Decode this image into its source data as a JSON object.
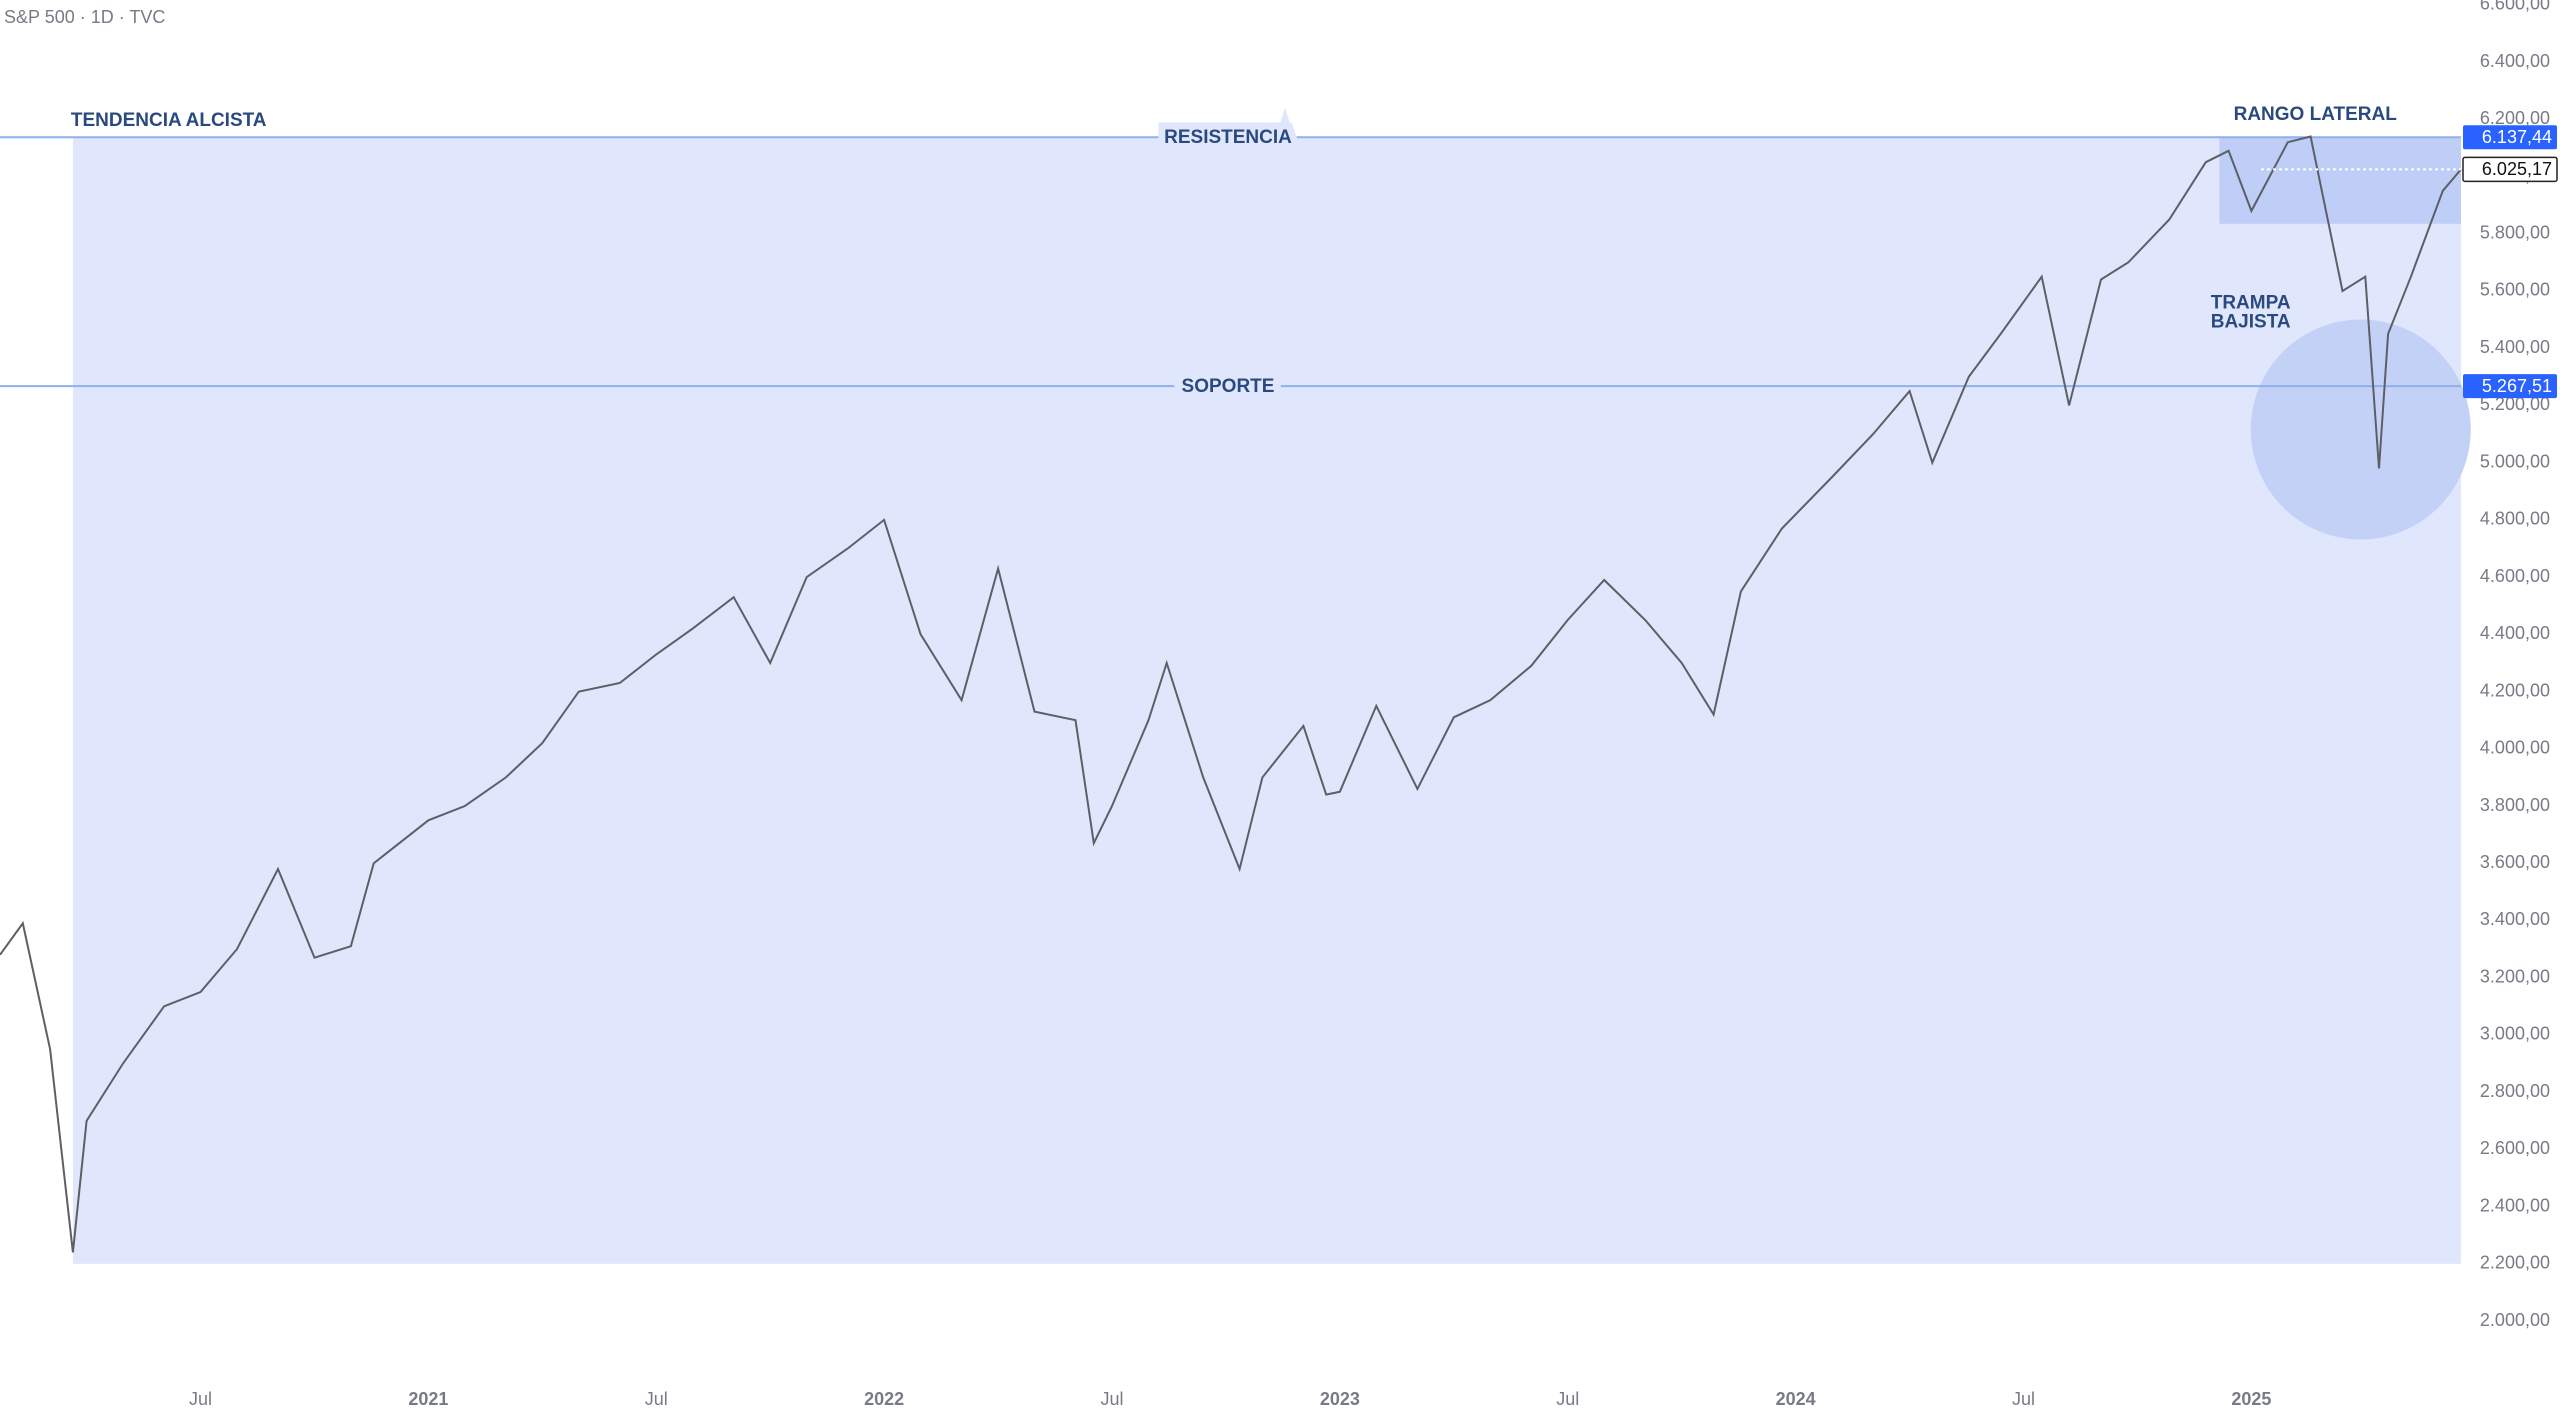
{
  "header": "S&P 500 · 1D · TVC",
  "chart_data": {
    "type": "line",
    "line_color": "#5d5f66",
    "grid": false,
    "x": [
      2020.06,
      2020.11,
      2020.17,
      2020.22,
      2020.25,
      2020.33,
      2020.42,
      2020.5,
      2020.58,
      2020.67,
      2020.75,
      2020.83,
      2020.88,
      2021.0,
      2021.08,
      2021.17,
      2021.25,
      2021.33,
      2021.42,
      2021.5,
      2021.58,
      2021.67,
      2021.75,
      2021.83,
      2021.92,
      2022.0,
      2022.08,
      2022.17,
      2022.25,
      2022.33,
      2022.42,
      2022.46,
      2022.5,
      2022.58,
      2022.62,
      2022.7,
      2022.78,
      2022.83,
      2022.92,
      2022.97,
      2023.0,
      2023.08,
      2023.17,
      2023.25,
      2023.33,
      2023.42,
      2023.5,
      2023.58,
      2023.67,
      2023.75,
      2023.82,
      2023.88,
      2023.97,
      2024.08,
      2024.17,
      2024.25,
      2024.3,
      2024.38,
      2024.45,
      2024.54,
      2024.6,
      2024.67,
      2024.73,
      2024.82,
      2024.9,
      2024.95,
      2025.0,
      2025.08,
      2025.13,
      2025.2,
      2025.25,
      2025.28,
      2025.3,
      2025.35,
      2025.42,
      2025.46
    ],
    "values": [
      3280,
      3390,
      2950,
      2240,
      2700,
      2900,
      3100,
      3150,
      3300,
      3580,
      3270,
      3310,
      3600,
      3750,
      3800,
      3900,
      4020,
      4200,
      4230,
      4330,
      4420,
      4530,
      4300,
      4600,
      4700,
      4800,
      4400,
      4170,
      4630,
      4130,
      4100,
      3670,
      3800,
      4100,
      4300,
      3900,
      3580,
      3900,
      4080,
      3840,
      3850,
      4150,
      3860,
      4110,
      4170,
      4290,
      4450,
      4590,
      4450,
      4300,
      4120,
      4550,
      4770,
      4950,
      5100,
      5250,
      5000,
      5300,
      5450,
      5650,
      5200,
      5640,
      5700,
      5850,
      6050,
      6090,
      5880,
      6120,
      6140,
      5600,
      5650,
      4980,
      5450,
      5650,
      5950,
      6025
    ],
    "xlim": [
      2020.06,
      2025.46
    ],
    "xticks": [
      {
        "value": 2020.5,
        "label": "Jul"
      },
      {
        "value": 2021,
        "label": "2021"
      },
      {
        "value": 2021.5,
        "label": "Jul"
      },
      {
        "value": 2022,
        "label": "2022"
      },
      {
        "value": 2022.5,
        "label": "Jul"
      },
      {
        "value": 2023,
        "label": "2023"
      },
      {
        "value": 2023.5,
        "label": "Jul"
      },
      {
        "value": 2024,
        "label": "2024"
      },
      {
        "value": 2024.5,
        "label": "Jul"
      },
      {
        "value": 2025,
        "label": "2025"
      }
    ],
    "ylim": [
      1794,
      6617
    ],
    "yticks": [
      {
        "value": 2000,
        "label": "2.000,00"
      },
      {
        "value": 2200,
        "label": "2.200,00"
      },
      {
        "value": 2400,
        "label": "2.400,00"
      },
      {
        "value": 2600,
        "label": "2.600,00"
      },
      {
        "value": 2800,
        "label": "2.800,00"
      },
      {
        "value": 3000,
        "label": "3.000,00"
      },
      {
        "value": 3200,
        "label": "3.200,00"
      },
      {
        "value": 3400,
        "label": "3.400,00"
      },
      {
        "value": 3600,
        "label": "3.600,00"
      },
      {
        "value": 3800,
        "label": "3.800,00"
      },
      {
        "value": 4000,
        "label": "4.000,00"
      },
      {
        "value": 4200,
        "label": "4.200,00"
      },
      {
        "value": 4400,
        "label": "4.400,00"
      },
      {
        "value": 4600,
        "label": "4.600,00"
      },
      {
        "value": 4800,
        "label": "4.800,00"
      },
      {
        "value": 5000,
        "label": "5.000,00"
      },
      {
        "value": 5200,
        "label": "5.200,00"
      },
      {
        "value": 5400,
        "label": "5.400,00"
      },
      {
        "value": 5600,
        "label": "5.600,00"
      },
      {
        "value": 5800,
        "label": "5.800,00"
      },
      {
        "value": 6000,
        "label": "6.000,00"
      },
      {
        "value": 6200,
        "label": "6.200,00"
      },
      {
        "value": 6400,
        "label": "6.400,00"
      },
      {
        "value": 6600,
        "label": "6.600,00"
      }
    ],
    "levels": [
      {
        "label": "RESISTENCIA",
        "value": 6137.44,
        "value_label": "6.137,44"
      },
      {
        "label": "SOPORTE",
        "value": 5267.51,
        "value_label": "5.267,51"
      }
    ],
    "last_price": {
      "value": 6025.17,
      "label": "6.025,17"
    },
    "zones": [
      {
        "label": "TENDENCIA ALCISTA",
        "x": [
          2020.22,
          2025.46
        ],
        "y": [
          2200,
          6137.44
        ]
      },
      {
        "label": "RANGO LATERAL",
        "x": [
          2024.93,
          2025.46
        ],
        "y": [
          5835,
          6137.44
        ]
      }
    ],
    "circle": {
      "lines": [
        "TRAMPA",
        "BAJISTA"
      ],
      "center": [
        2025.24,
        5116
      ]
    }
  }
}
